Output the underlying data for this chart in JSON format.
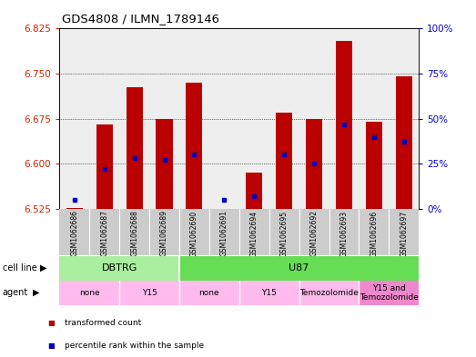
{
  "title": "GDS4808 / ILMN_1789146",
  "samples": [
    "GSM1062686",
    "GSM1062687",
    "GSM1062688",
    "GSM1062689",
    "GSM1062690",
    "GSM1062691",
    "GSM1062694",
    "GSM1062695",
    "GSM1062692",
    "GSM1062693",
    "GSM1062696",
    "GSM1062697"
  ],
  "red_values": [
    6.527,
    6.665,
    6.728,
    6.675,
    6.735,
    6.525,
    6.585,
    6.685,
    6.675,
    6.805,
    6.67,
    6.745
  ],
  "blue_values": [
    5,
    22,
    28,
    27,
    30,
    5,
    7,
    30,
    25,
    47,
    40,
    37
  ],
  "ylim_left": [
    6.525,
    6.825
  ],
  "ylim_right": [
    0,
    100
  ],
  "yticks_left": [
    6.525,
    6.6,
    6.675,
    6.75,
    6.825
  ],
  "yticks_right": [
    0,
    25,
    50,
    75,
    100
  ],
  "ytick_labels_right": [
    "0%",
    "25%",
    "50%",
    "75%",
    "100%"
  ],
  "bar_color": "#bb0000",
  "dot_color": "#0000bb",
  "bar_bottom": 6.525,
  "bar_width": 0.55,
  "cell_line_groups": [
    {
      "label": "DBTRG",
      "start": 0,
      "end": 3,
      "color": "#aaeea0"
    },
    {
      "label": "U87",
      "start": 4,
      "end": 11,
      "color": "#66dd55"
    }
  ],
  "agent_groups": [
    {
      "label": "none",
      "start": 0,
      "end": 1,
      "color": "#ffbbee"
    },
    {
      "label": "Y15",
      "start": 2,
      "end": 3,
      "color": "#ffbbee"
    },
    {
      "label": "none",
      "start": 4,
      "end": 5,
      "color": "#ffbbee"
    },
    {
      "label": "Y15",
      "start": 6,
      "end": 7,
      "color": "#ffbbee"
    },
    {
      "label": "Temozolomide",
      "start": 8,
      "end": 9,
      "color": "#ffbbee"
    },
    {
      "label": "Y15 and\nTemozolomide",
      "start": 10,
      "end": 11,
      "color": "#ee88cc"
    }
  ],
  "legend_items": [
    {
      "label": "transformed count",
      "color": "#bb0000"
    },
    {
      "label": "percentile rank within the sample",
      "color": "#0000bb"
    }
  ],
  "left_tick_color": "#cc2200",
  "right_tick_color": "#0000cc",
  "bg_color": "#ffffff",
  "sample_bg_color": "#cccccc",
  "plot_bg_color": "#eeeeee"
}
